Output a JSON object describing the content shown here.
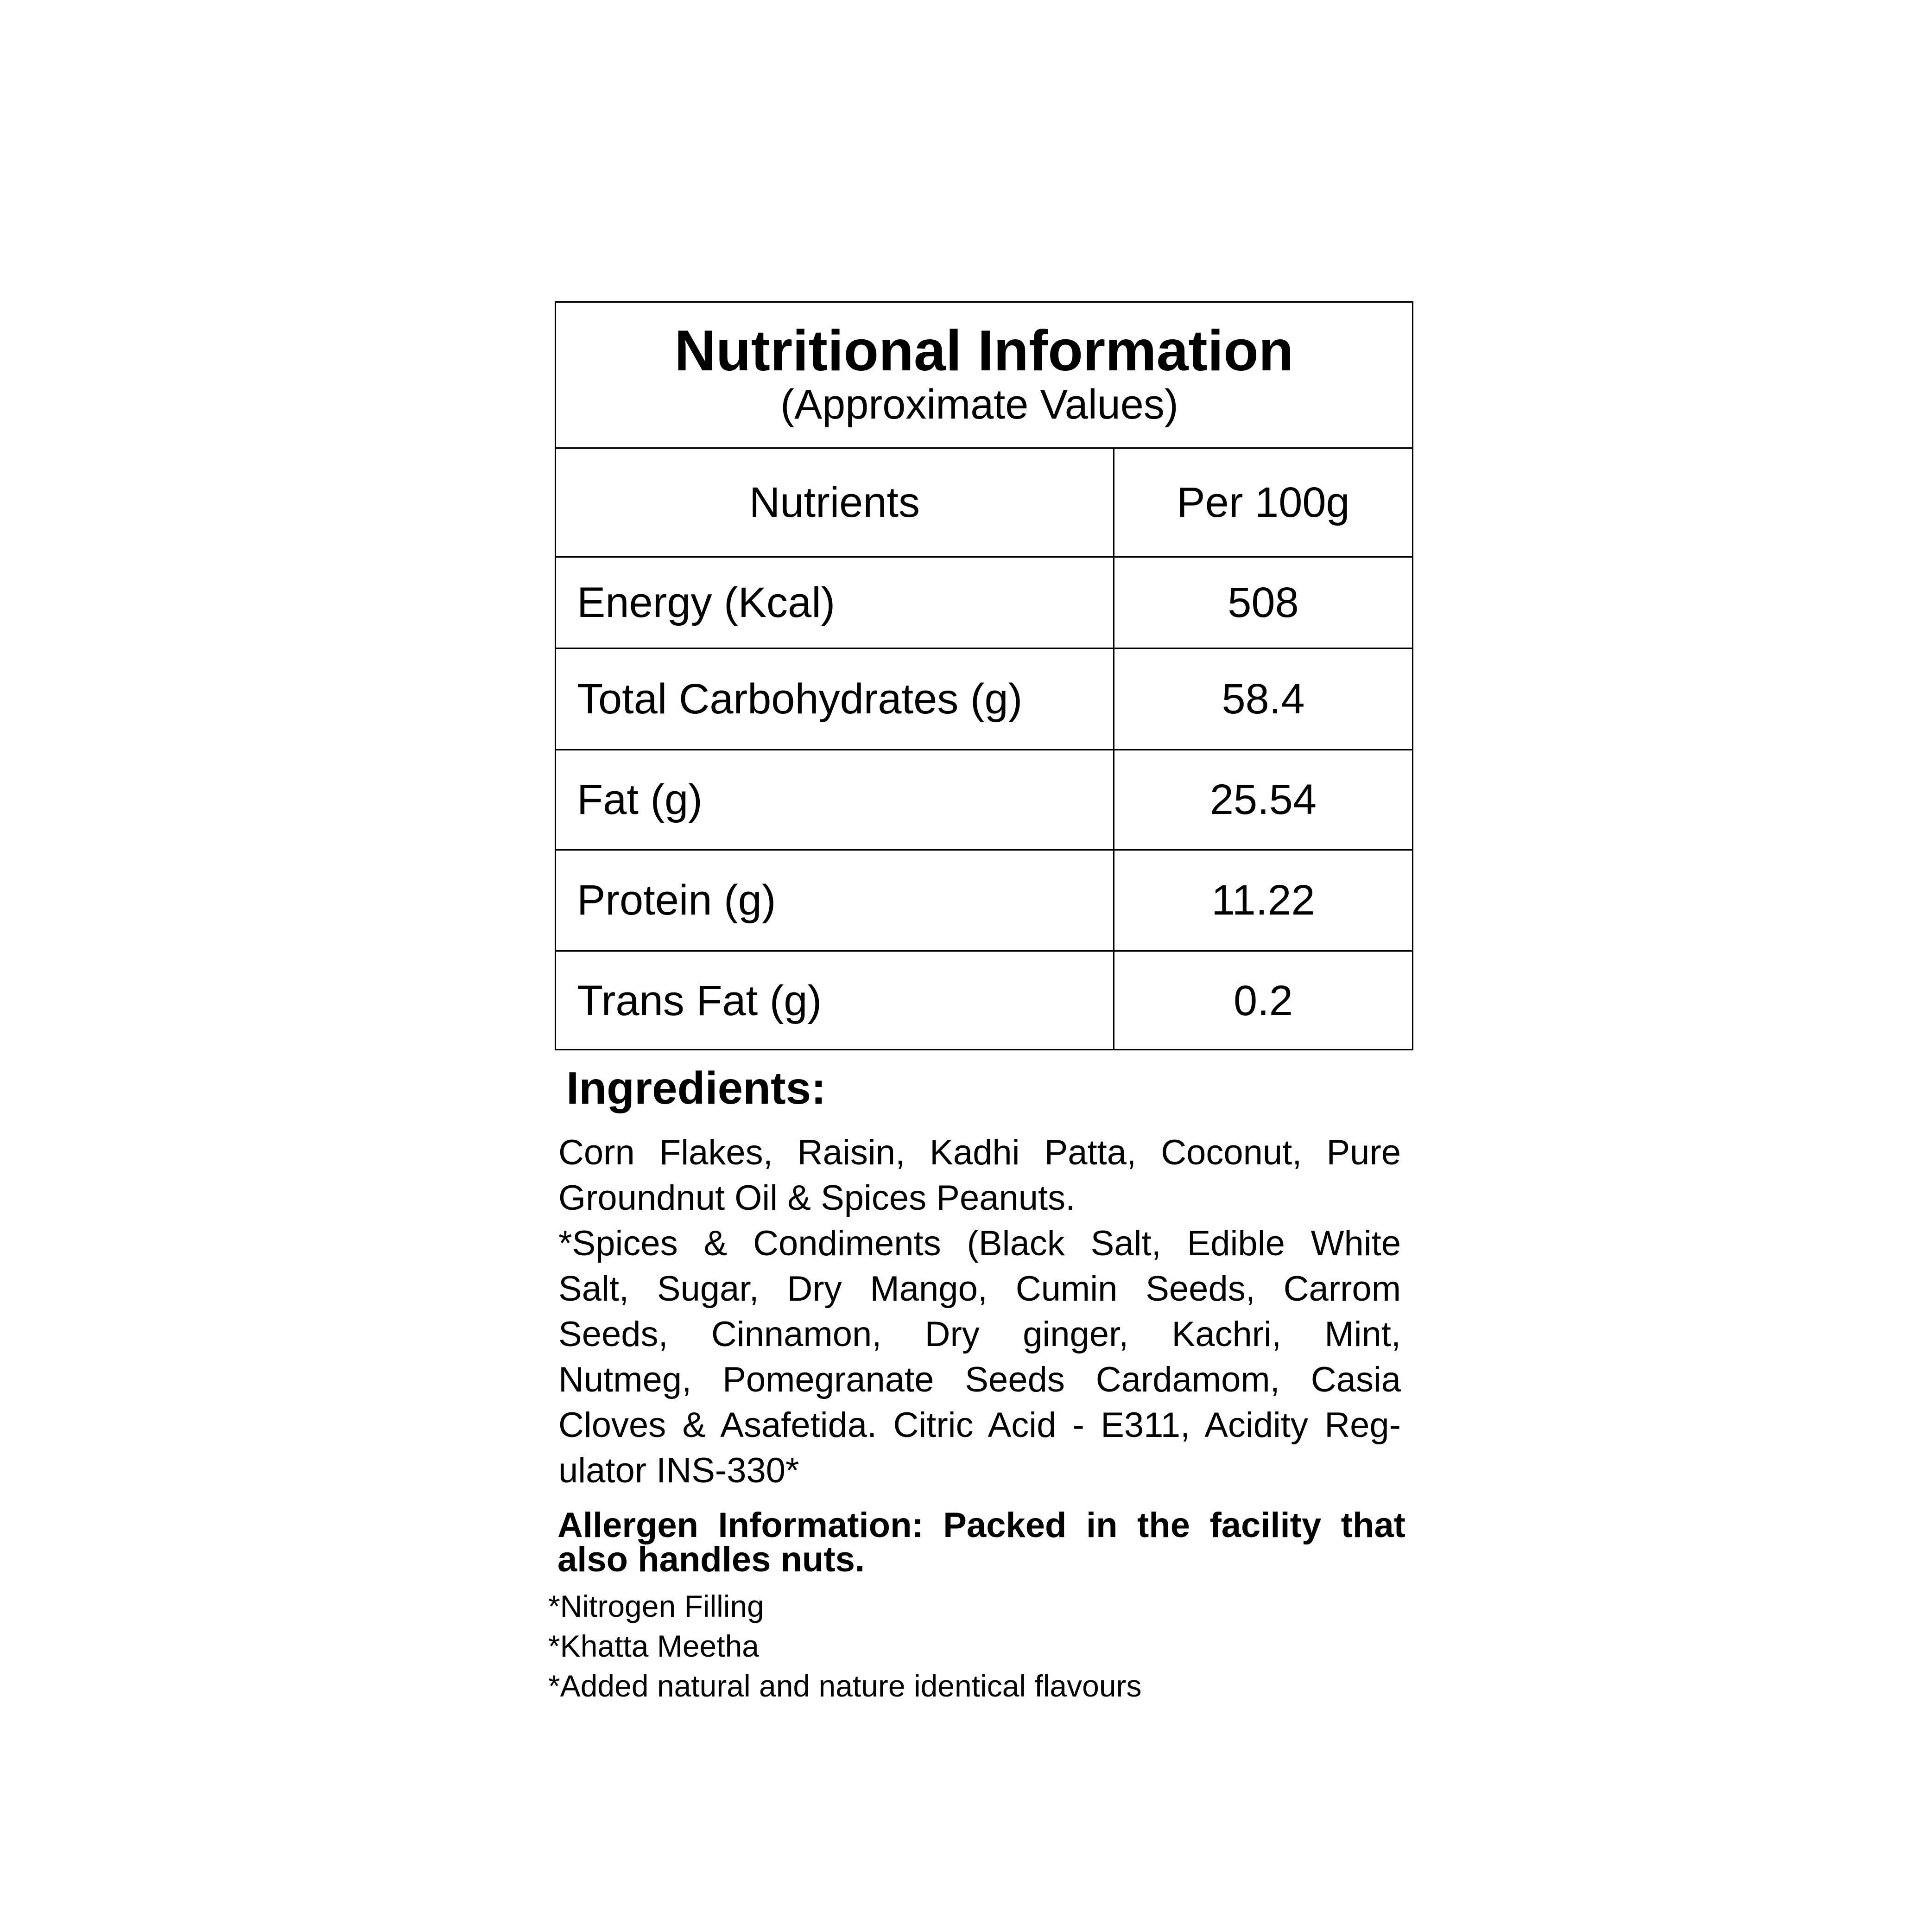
{
  "header": {
    "title": "Nutritional Information",
    "subtitle": "(Approximate Values)"
  },
  "table": {
    "columns": [
      "Nutrients",
      "Per 100g"
    ],
    "rows": [
      {
        "nutrient": "Energy (Kcal)",
        "value": "508"
      },
      {
        "nutrient": "Total Carbohydrates (g)",
        "value": "58.4"
      },
      {
        "nutrient": "Fat (g)",
        "value": "25.54"
      },
      {
        "nutrient": "Protein (g)",
        "value": "11.22"
      },
      {
        "nutrient": "Trans Fat (g)",
        "value": "0.2"
      }
    ]
  },
  "ingredients": {
    "title": "Ingredients:",
    "lines": [
      "Corn Flakes, Raisin, Kadhi Patta, Coconut, Pure",
      "Groundnut Oil & Spices Peanuts.",
      "*Spices & Condiments (Black Salt, Edible White",
      "Salt, Sugar, Dry Mango, Cumin Seeds, Carrom",
      "Seeds, Cinnamon, Dry ginger, Kachri, Mint,",
      "Nutmeg, Pomegranate Seeds Cardamom, Casia",
      "Cloves & Asafetida. Citric Acid - E311, Acidity Reg-",
      "ulator INS-330*"
    ]
  },
  "allergen": {
    "lines": [
      "Allergen Information: Packed in the facility that",
      "also handles nuts."
    ]
  },
  "notes": [
    "*Nitrogen Filling",
    "*Khatta Meetha",
    "*Added natural and nature identical flavours"
  ]
}
